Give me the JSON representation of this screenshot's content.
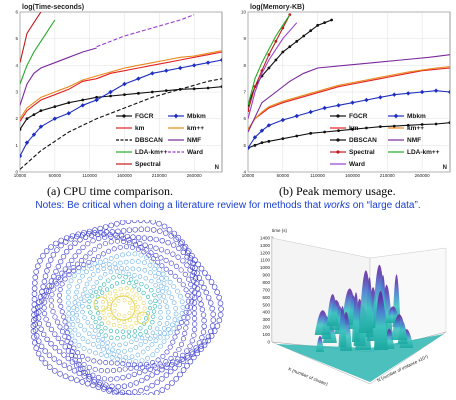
{
  "chart_data": [
    {
      "type": "line",
      "ylabel": "log(Time-seconds)",
      "xlabel": "N",
      "x_ticks": [
        "10000",
        "60000",
        "110000",
        "160000",
        "210000",
        "260000"
      ],
      "y_ticks": [
        "0",
        "1",
        "2",
        "3",
        "4",
        "5",
        "6"
      ],
      "ylim": [
        0,
        6
      ],
      "xlim": [
        10000,
        300000
      ],
      "grid": true,
      "legend": "bottom-right",
      "series": [
        {
          "name": "FGCR",
          "color": "#111111",
          "marker": "circle",
          "dash": false,
          "x": [
            10000,
            20000,
            30000,
            40000,
            60000,
            80000,
            100000,
            120000,
            140000,
            160000,
            180000,
            200000,
            220000,
            240000,
            260000,
            280000,
            300000
          ],
          "y": [
            1.6,
            2.0,
            2.15,
            2.3,
            2.45,
            2.6,
            2.7,
            2.8,
            2.85,
            2.9,
            2.95,
            3.0,
            3.05,
            3.1,
            3.12,
            3.15,
            3.2
          ]
        },
        {
          "name": "Mbkm",
          "color": "#1f2fbf",
          "marker": "diamond",
          "dash": false,
          "x": [
            10000,
            20000,
            30000,
            40000,
            60000,
            80000,
            100000,
            120000,
            140000,
            160000,
            180000,
            200000,
            220000,
            240000,
            260000,
            280000,
            300000
          ],
          "y": [
            0.6,
            1.1,
            1.4,
            1.7,
            2.0,
            2.2,
            2.5,
            2.7,
            3.0,
            3.3,
            3.5,
            3.7,
            3.8,
            3.9,
            4.0,
            4.1,
            4.2
          ]
        },
        {
          "name": "km",
          "color": "#e52222",
          "marker": "none",
          "dash": false,
          "x": [
            10000,
            20000,
            30000,
            40000,
            60000,
            80000,
            100000,
            120000,
            140000,
            160000,
            180000,
            200000,
            220000,
            240000,
            260000,
            280000,
            300000
          ],
          "y": [
            1.9,
            2.3,
            2.5,
            2.7,
            2.9,
            3.1,
            3.4,
            3.5,
            3.7,
            3.8,
            3.9,
            4.0,
            4.1,
            4.2,
            4.3,
            4.4,
            4.5
          ]
        },
        {
          "name": "km++",
          "color": "#e8891a",
          "marker": "none",
          "dash": false,
          "x": [
            10000,
            20000,
            30000,
            40000,
            60000,
            80000,
            100000,
            120000,
            140000,
            160000,
            180000,
            200000,
            220000,
            240000,
            260000,
            280000,
            300000
          ],
          "y": [
            2.0,
            2.4,
            2.6,
            2.8,
            3.0,
            3.2,
            3.45,
            3.6,
            3.75,
            3.9,
            4.0,
            4.1,
            4.2,
            4.3,
            4.35,
            4.45,
            4.55
          ]
        },
        {
          "name": "DBSCAN",
          "color": "#111111",
          "marker": "none",
          "dash": true,
          "x": [
            10000,
            40000,
            80000,
            120000,
            160000,
            200000,
            240000,
            280000,
            300000
          ],
          "y": [
            0.1,
            0.8,
            1.5,
            2.0,
            2.4,
            2.8,
            3.1,
            3.4,
            3.5
          ]
        },
        {
          "name": "NMF",
          "color": "#7a2a9c",
          "marker": "none",
          "dash": false,
          "x": [
            10000,
            20000,
            30000,
            40000,
            60000,
            80000,
            100000,
            120000
          ],
          "y": [
            2.5,
            3.3,
            3.7,
            3.9,
            4.1,
            4.3,
            4.5,
            4.65
          ]
        },
        {
          "name": "LDA-km++",
          "color": "#27a827",
          "marker": "none",
          "dash": false,
          "x": [
            10000,
            20000,
            30000,
            40000,
            50000,
            60000
          ],
          "y": [
            3.3,
            4.0,
            4.5,
            4.9,
            5.3,
            5.7
          ]
        },
        {
          "name": "Ward",
          "color": "#9b3fd0",
          "marker": "none",
          "dash": true,
          "x": [
            120000,
            160000,
            200000,
            240000,
            260000
          ],
          "y": [
            4.7,
            5.1,
            5.4,
            5.7,
            5.9
          ]
        },
        {
          "name": "Spectral",
          "color": "#c21b1b",
          "marker": "none",
          "dash": false,
          "x": [
            10000,
            20000,
            30000,
            40000
          ],
          "y": [
            4.1,
            5.2,
            5.6,
            6.0
          ]
        }
      ]
    },
    {
      "type": "line",
      "ylabel": "log(Memory-KB)",
      "xlabel": "N",
      "x_ticks": [
        "10000",
        "60000",
        "110000",
        "160000",
        "210000",
        "260000"
      ],
      "y_ticks": [
        "4",
        "5",
        "6",
        "7",
        "8",
        "9",
        "10"
      ],
      "ylim": [
        4,
        10
      ],
      "xlim": [
        10000,
        300000
      ],
      "grid": true,
      "legend": "bottom-right",
      "series": [
        {
          "name": "FGCR",
          "color": "#111111",
          "marker": "circle",
          "dash": false,
          "x": [
            10000,
            20000,
            30000,
            40000,
            60000,
            80000,
            100000,
            120000,
            140000,
            160000,
            180000,
            200000,
            220000,
            240000,
            260000,
            280000,
            300000
          ],
          "y": [
            4.9,
            5.0,
            5.1,
            5.15,
            5.25,
            5.35,
            5.45,
            5.5,
            5.55,
            5.6,
            5.65,
            5.7,
            5.72,
            5.75,
            5.78,
            5.8,
            5.85
          ]
        },
        {
          "name": "Mbkm",
          "color": "#1f2fbf",
          "marker": "diamond",
          "dash": false,
          "x": [
            10000,
            20000,
            30000,
            40000,
            60000,
            80000,
            100000,
            120000,
            140000,
            160000,
            180000,
            200000,
            220000,
            240000,
            260000,
            280000,
            300000
          ],
          "y": [
            4.9,
            5.3,
            5.55,
            5.75,
            5.95,
            6.1,
            6.25,
            6.4,
            6.5,
            6.6,
            6.7,
            6.8,
            6.9,
            6.95,
            7.0,
            7.05,
            7.0
          ]
        },
        {
          "name": "km",
          "color": "#e52222",
          "marker": "none",
          "dash": false,
          "x": [
            10000,
            20000,
            30000,
            40000,
            60000,
            80000,
            100000,
            120000,
            140000,
            160000,
            180000,
            200000,
            220000,
            240000,
            260000,
            280000,
            300000
          ],
          "y": [
            5.6,
            6.0,
            6.2,
            6.4,
            6.6,
            6.75,
            6.9,
            7.05,
            7.2,
            7.3,
            7.4,
            7.5,
            7.6,
            7.7,
            7.8,
            7.85,
            7.9
          ]
        },
        {
          "name": "km++",
          "color": "#e8891a",
          "marker": "none",
          "dash": false,
          "x": [
            10000,
            20000,
            30000,
            40000,
            60000,
            80000,
            100000,
            120000,
            140000,
            160000,
            180000,
            200000,
            220000,
            240000,
            260000,
            280000,
            300000
          ],
          "y": [
            5.6,
            6.0,
            6.25,
            6.45,
            6.65,
            6.8,
            6.95,
            7.1,
            7.25,
            7.35,
            7.45,
            7.55,
            7.65,
            7.75,
            7.82,
            7.9,
            7.95
          ]
        },
        {
          "name": "DBSCAN",
          "color": "#111111",
          "marker": "circle",
          "dash": false,
          "x": [
            10000,
            20000,
            30000,
            40000,
            50000,
            60000,
            70000,
            80000,
            90000,
            100000,
            110000,
            120000,
            130000
          ],
          "y": [
            6.5,
            7.2,
            7.6,
            7.9,
            8.2,
            8.5,
            8.7,
            8.9,
            9.1,
            9.3,
            9.5,
            9.6,
            9.7
          ]
        },
        {
          "name": "NMF",
          "color": "#7a2a9c",
          "marker": "none",
          "dash": false,
          "x": [
            10000,
            30000,
            50000,
            70000,
            90000,
            110000,
            150000,
            190000,
            230000,
            270000,
            300000
          ],
          "y": [
            5.5,
            6.6,
            7.0,
            7.4,
            7.7,
            7.9,
            8.0,
            8.1,
            8.2,
            8.3,
            8.4
          ]
        },
        {
          "name": "Spectral",
          "color": "#c21b1b",
          "marker": "circle",
          "dash": false,
          "x": [
            10000,
            20000,
            30000,
            40000,
            50000,
            60000,
            70000
          ],
          "y": [
            6.3,
            7.2,
            7.8,
            8.4,
            8.9,
            9.4,
            9.9
          ]
        },
        {
          "name": "LDA-km++",
          "color": "#27a827",
          "marker": "none",
          "dash": false,
          "x": [
            10000,
            20000,
            30000,
            40000,
            50000,
            60000,
            70000
          ],
          "y": [
            6.5,
            7.5,
            8.1,
            8.6,
            9.1,
            9.5,
            9.9
          ]
        },
        {
          "name": "Ward",
          "color": "#9b3fd0",
          "marker": "none",
          "dash": false,
          "x": [
            10000,
            20000,
            30000,
            40000,
            60000,
            80000
          ],
          "y": [
            6.0,
            7.0,
            7.7,
            8.2,
            9.0,
            9.6
          ]
        }
      ]
    },
    {
      "type": "diagram",
      "colors": {
        "outer": "#3a3acc",
        "mid": "#6ab0e8",
        "inner": "#2bb5b0",
        "core": "#e8d860"
      }
    },
    {
      "type": "surface",
      "zlabel": "time (s)",
      "xlabel": "K (number of cluster)",
      "ylabel": "N (number of instance x10⁴)",
      "z_ticks": [
        "0",
        "100",
        "200",
        "300",
        "400",
        "500",
        "600",
        "700",
        "800",
        "900",
        "1000",
        "1100",
        "1200",
        "1300",
        "1400"
      ],
      "zlim": [
        0,
        1400
      ]
    }
  ],
  "captions": {
    "left": "(a) CPU time comparison.",
    "right": "(b) Peak memory usage."
  },
  "notes": {
    "prefix": "Notes: Be critical when doing a literature review for methods that ",
    "emphasis": "works",
    "suffix": " on “large data”."
  },
  "colors": {
    "notes": "#1a3fd0",
    "grid": "#d8d8d8"
  }
}
